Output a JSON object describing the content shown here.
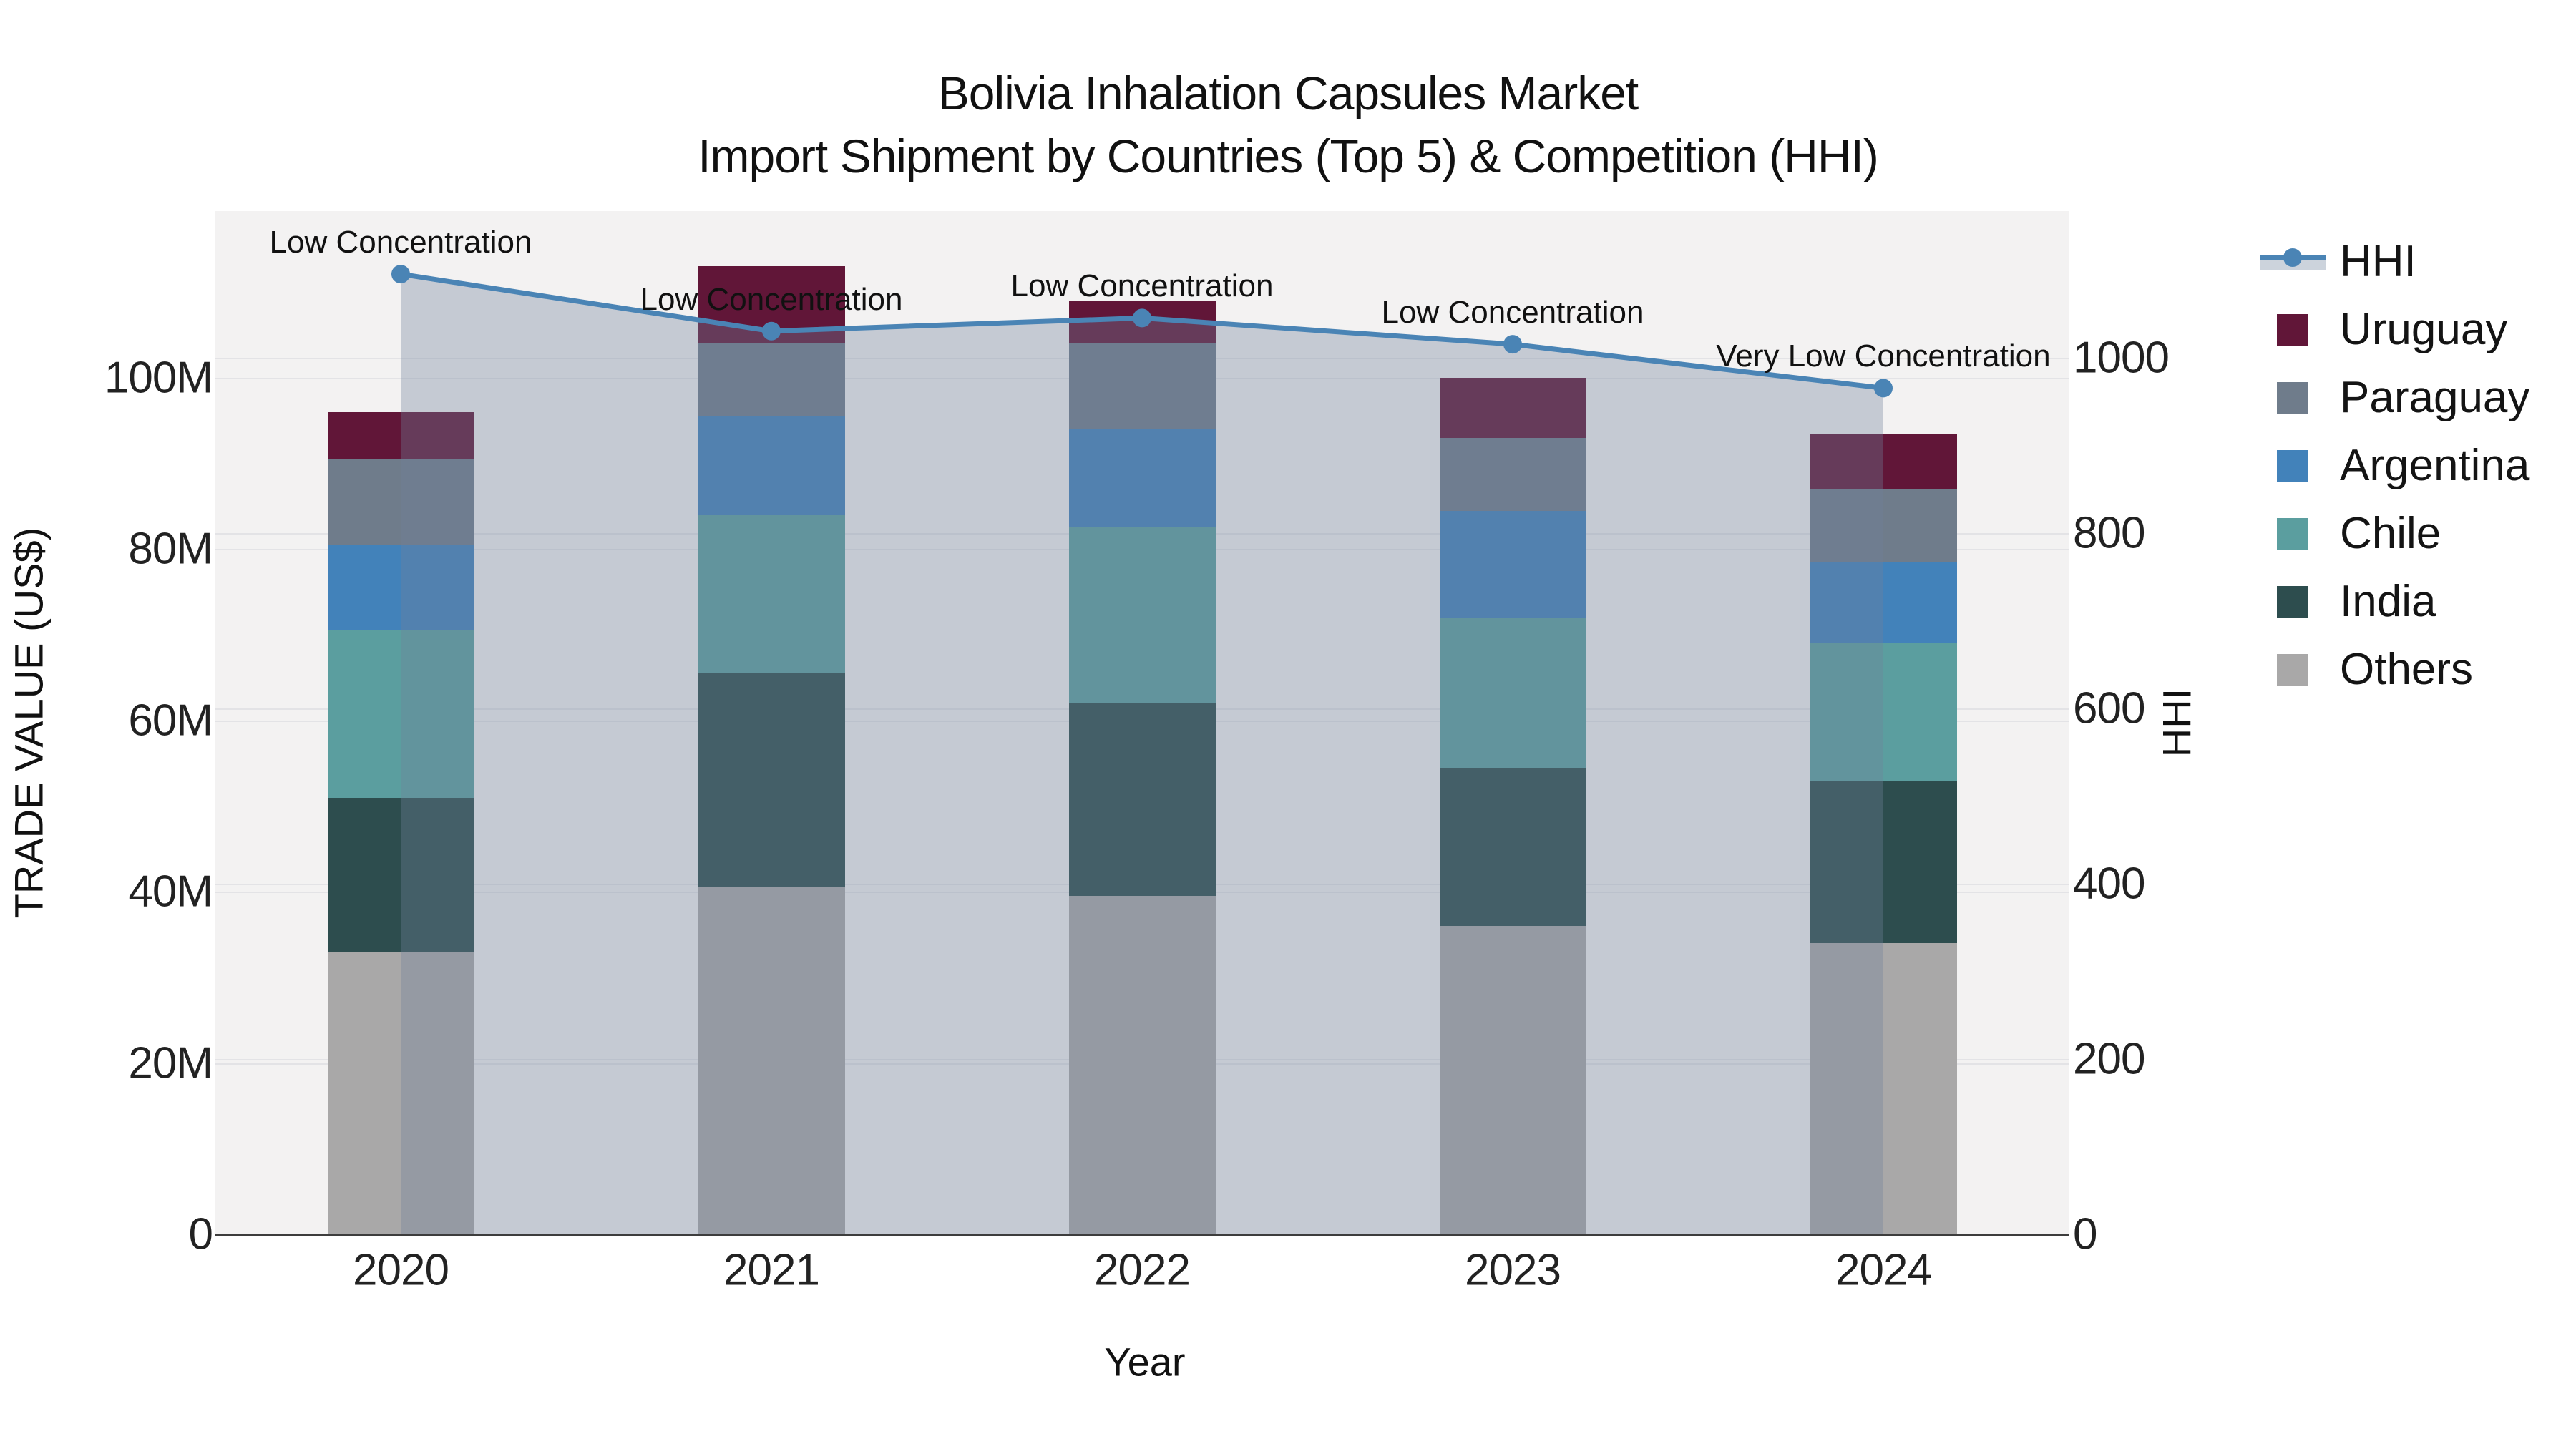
{
  "title": {
    "line1": "Bolivia Inhalation Capsules Market",
    "line2": "Import Shipment by Countries (Top 5) & Competition (HHI)"
  },
  "axes": {
    "x": {
      "title": "Year",
      "categories": [
        "2020",
        "2021",
        "2022",
        "2023",
        "2024"
      ]
    },
    "y_left": {
      "title": "TRADE VALUE (US$)",
      "ticks": [
        {
          "value": 0,
          "label": "0"
        },
        {
          "value": 20,
          "label": "20M"
        },
        {
          "value": 40,
          "label": "40M"
        },
        {
          "value": 60,
          "label": "60M"
        },
        {
          "value": 80,
          "label": "80M"
        },
        {
          "value": 100,
          "label": "100M"
        }
      ]
    },
    "y_right": {
      "title": "HHI",
      "ticks": [
        {
          "value": 0,
          "label": "0"
        },
        {
          "value": 200,
          "label": "200"
        },
        {
          "value": 400,
          "label": "400"
        },
        {
          "value": 600,
          "label": "600"
        },
        {
          "value": 800,
          "label": "800"
        },
        {
          "value": 1000,
          "label": "1000"
        }
      ]
    }
  },
  "chart_data": {
    "type": "bar+line",
    "title": "Bolivia Inhalation Capsules Market — Import Shipment by Countries (Top 5) & Competition (HHI)",
    "categories": [
      2020,
      2021,
      2022,
      2023,
      2024
    ],
    "bar_unit": "US$ millions",
    "stack_order": "bottom to top",
    "series": [
      {
        "name": "Others",
        "color": "#a9a8a8",
        "values": [
          33.0,
          40.5,
          39.5,
          36.0,
          34.0
        ]
      },
      {
        "name": "India",
        "color": "#2d4d4e",
        "values": [
          18.0,
          25.0,
          22.5,
          18.5,
          19.0
        ]
      },
      {
        "name": "Chile",
        "color": "#5b9e9f",
        "values": [
          19.5,
          18.5,
          20.5,
          17.5,
          16.0
        ]
      },
      {
        "name": "Argentina",
        "color": "#4282ba",
        "values": [
          10.0,
          11.5,
          11.5,
          12.5,
          9.5
        ]
      },
      {
        "name": "Paraguay",
        "color": "#6f7c8b",
        "values": [
          10.0,
          8.5,
          10.0,
          8.5,
          8.5
        ]
      },
      {
        "name": "Uruguay",
        "color": "#611638",
        "values": [
          5.5,
          9.0,
          5.0,
          7.0,
          6.5
        ]
      }
    ],
    "bar_totals": [
      96.0,
      113.0,
      109.0,
      100.0,
      93.5
    ],
    "line": {
      "name": "HHI",
      "axis": "right",
      "color": "#4a84b5",
      "fill_color": "rgba(111,129,154,0.35)",
      "values": [
        1095,
        1030,
        1045,
        1015,
        965
      ],
      "annotations": [
        "Low Concentration",
        "Low Concentration",
        "Low Concentration",
        "Low Concentration",
        "Very Low Concentration"
      ]
    },
    "xlabel": "Year",
    "ylabel_left": "TRADE VALUE (US$)",
    "ylabel_right": "HHI",
    "y_left_range": [
      0,
      119.5
    ],
    "y_right_range": [
      0,
      1167
    ],
    "grid": true,
    "legend_position": "right"
  },
  "legend": {
    "items": [
      {
        "label": "HHI",
        "type": "line-fill",
        "color": "#4a84b5"
      },
      {
        "label": "Uruguay",
        "type": "swatch",
        "color": "#611638"
      },
      {
        "label": "Paraguay",
        "type": "swatch",
        "color": "#6f7c8b"
      },
      {
        "label": "Argentina",
        "type": "swatch",
        "color": "#4282ba"
      },
      {
        "label": "Chile",
        "type": "swatch",
        "color": "#5b9e9f"
      },
      {
        "label": "India",
        "type": "swatch",
        "color": "#2d4d4e"
      },
      {
        "label": "Others",
        "type": "swatch",
        "color": "#a9a8a8"
      }
    ]
  },
  "colors": {
    "plot_background": "#f3f2f2",
    "gridline": "#e3e3e6",
    "axis_line": "#3d3d3d",
    "hhi_line": "#4a84b5",
    "hhi_fill": "rgba(111,129,154,0.35)",
    "legend_fill_band": "#ccd3dc"
  }
}
